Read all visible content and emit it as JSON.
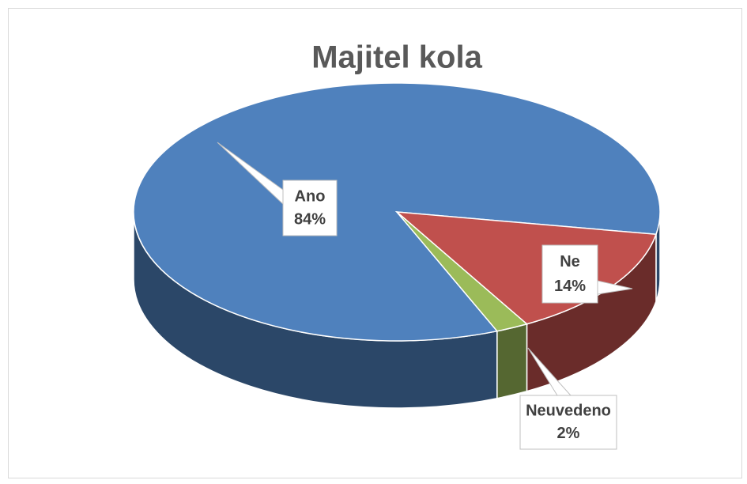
{
  "chart_data": {
    "type": "pie3d",
    "title": "Majitel kola",
    "categories": [
      "Ano",
      "Ne",
      "Neuvedeno"
    ],
    "values": [
      84,
      14,
      2
    ],
    "value_labels": [
      "84%",
      "14%",
      "2%"
    ],
    "colors": [
      "#4f81bd",
      "#c0504d",
      "#9bbb59"
    ]
  }
}
